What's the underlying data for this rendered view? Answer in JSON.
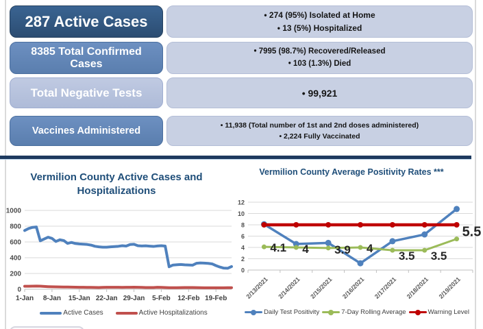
{
  "stats": {
    "rows": [
      {
        "label": "287 Active Cases",
        "bullets": [
          "• 274 (95%) Isolated at Home",
          "• 13 (5%) Hospitalized"
        ]
      },
      {
        "label": "8385 Total Confirmed Cases",
        "bullets": [
          "• 7995 (98.7%) Recovered/Released",
          "• 103 (1.3%) Died"
        ]
      },
      {
        "label": "Total Negative Tests",
        "bullets": [
          "• 99,921"
        ]
      },
      {
        "label": "Vaccines Administered",
        "bullets": [
          "• 11,938 (Total number of 1st and 2nd doses administered)",
          "• 2,224 Fully Vaccinated"
        ]
      }
    ]
  },
  "colors": {
    "accent_navy": "#1f4e79",
    "divider": "#1e3a5f",
    "series_blue": "#4f81bd",
    "series_red": "#c0504d",
    "series_green": "#9bbb59",
    "warning_red": "#bf0000"
  },
  "chart_data": [
    {
      "type": "line",
      "title": "Vermilion County Active Cases and Hospitalizations",
      "x_mode": "continuous",
      "x_tick_labels": [
        "1-Jan",
        "8-Jan",
        "15-Jan",
        "22-Jan",
        "29-Jan",
        "5-Feb",
        "12-Feb",
        "19-Feb"
      ],
      "x_tick_positions": [
        0,
        7,
        14,
        21,
        28,
        35,
        42,
        49
      ],
      "ylim": [
        0,
        1000
      ],
      "y_step": 200,
      "grid": true,
      "legend_position": "bottom",
      "series": [
        {
          "name": "Active Cases",
          "color": "#4f81bd",
          "width": 4,
          "values": [
            745,
            770,
            785,
            790,
            615,
            638,
            660,
            645,
            606,
            628,
            618,
            582,
            594,
            580,
            575,
            572,
            568,
            560,
            545,
            538,
            534,
            534,
            538,
            541,
            545,
            552,
            548,
            567,
            571,
            552,
            549,
            551,
            547,
            543,
            549,
            552,
            548,
            285,
            307,
            311,
            314,
            310,
            308,
            305,
            329,
            334,
            332,
            328,
            322,
            300,
            282,
            268,
            266,
            288
          ]
        },
        {
          "name": "Active Hospitalizations",
          "color": "#c0504d",
          "width": 4,
          "values": [
            38,
            38,
            39,
            40,
            39,
            36,
            33,
            31,
            30,
            29,
            28,
            28,
            27,
            26,
            25,
            25,
            24,
            24,
            23,
            22,
            24,
            25,
            25,
            25,
            25,
            24,
            25,
            25,
            26,
            25,
            24,
            22,
            22,
            22,
            25,
            24,
            22,
            20,
            20,
            20,
            21,
            22,
            22,
            22,
            21,
            20,
            19,
            18,
            18,
            18,
            18,
            19,
            20,
            20
          ]
        }
      ]
    },
    {
      "type": "line",
      "title": "Vermilion County Average Positivity Rates ***",
      "x_mode": "slot",
      "categories": [
        "2/13/2021",
        "2/14/2021",
        "2/15/2021",
        "2/16/2021",
        "2/17/2021",
        "2/18/2021",
        "2/19/2021"
      ],
      "ylim": [
        0,
        12
      ],
      "y_step": 2,
      "grid": true,
      "legend_position": "bottom",
      "series": [
        {
          "name": "Daily Test Positivity",
          "color": "#4f81bd",
          "width": 3.5,
          "marker": 4.5,
          "values": [
            8.1,
            4.6,
            4.8,
            1.2,
            5.1,
            6.3,
            10.8
          ]
        },
        {
          "name": "7-Day Rolling Average",
          "color": "#9bbb59",
          "width": 3,
          "marker": 3.5,
          "values": [
            4.1,
            4,
            3.9,
            4,
            3.5,
            3.5,
            5.5
          ],
          "labels": [
            {
              "text": "4.1",
              "dx": 9,
              "dy": 7
            },
            {
              "text": "4",
              "dx": 9,
              "dy": 8
            },
            {
              "text": "3.9",
              "dx": 9,
              "dy": 8
            },
            {
              "text": "4",
              "dx": 9,
              "dy": 7
            },
            {
              "text": "3.5",
              "dx": 9,
              "dy": 14
            },
            {
              "text": "3.5",
              "dx": 9,
              "dy": 14
            },
            {
              "text": "5.5",
              "dx": 8,
              "dy": -4,
              "size": 20
            }
          ]
        },
        {
          "name": "Warning Level",
          "color": "#bf0000",
          "width": 4.5,
          "marker": 4,
          "values": [
            8,
            8,
            8,
            8,
            8,
            8,
            8
          ]
        }
      ]
    }
  ]
}
